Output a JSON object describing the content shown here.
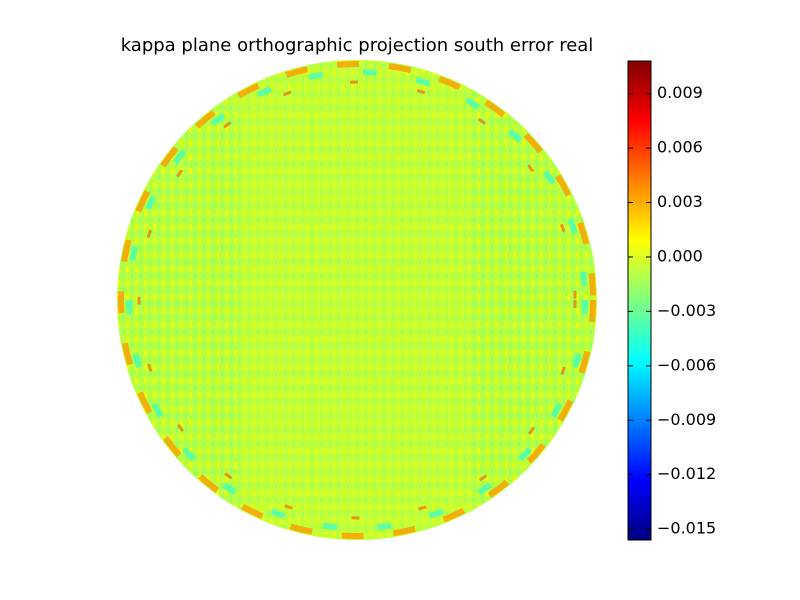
{
  "chart_data": {
    "type": "heatmap",
    "title": "kappa plane orthographic projection south error real",
    "colormap": "jet",
    "clim": [
      -0.0156,
      0.0108
    ],
    "cticks": [
      {
        "value": -0.015,
        "label": "−0.015"
      },
      {
        "value": -0.012,
        "label": "−0.012"
      },
      {
        "value": -0.009,
        "label": "−0.009"
      },
      {
        "value": -0.006,
        "label": "−0.006"
      },
      {
        "value": -0.003,
        "label": "−0.003"
      },
      {
        "value": 0,
        "label": "0.000"
      },
      0.003,
      0.006,
      0.009
    ]
  }
}
